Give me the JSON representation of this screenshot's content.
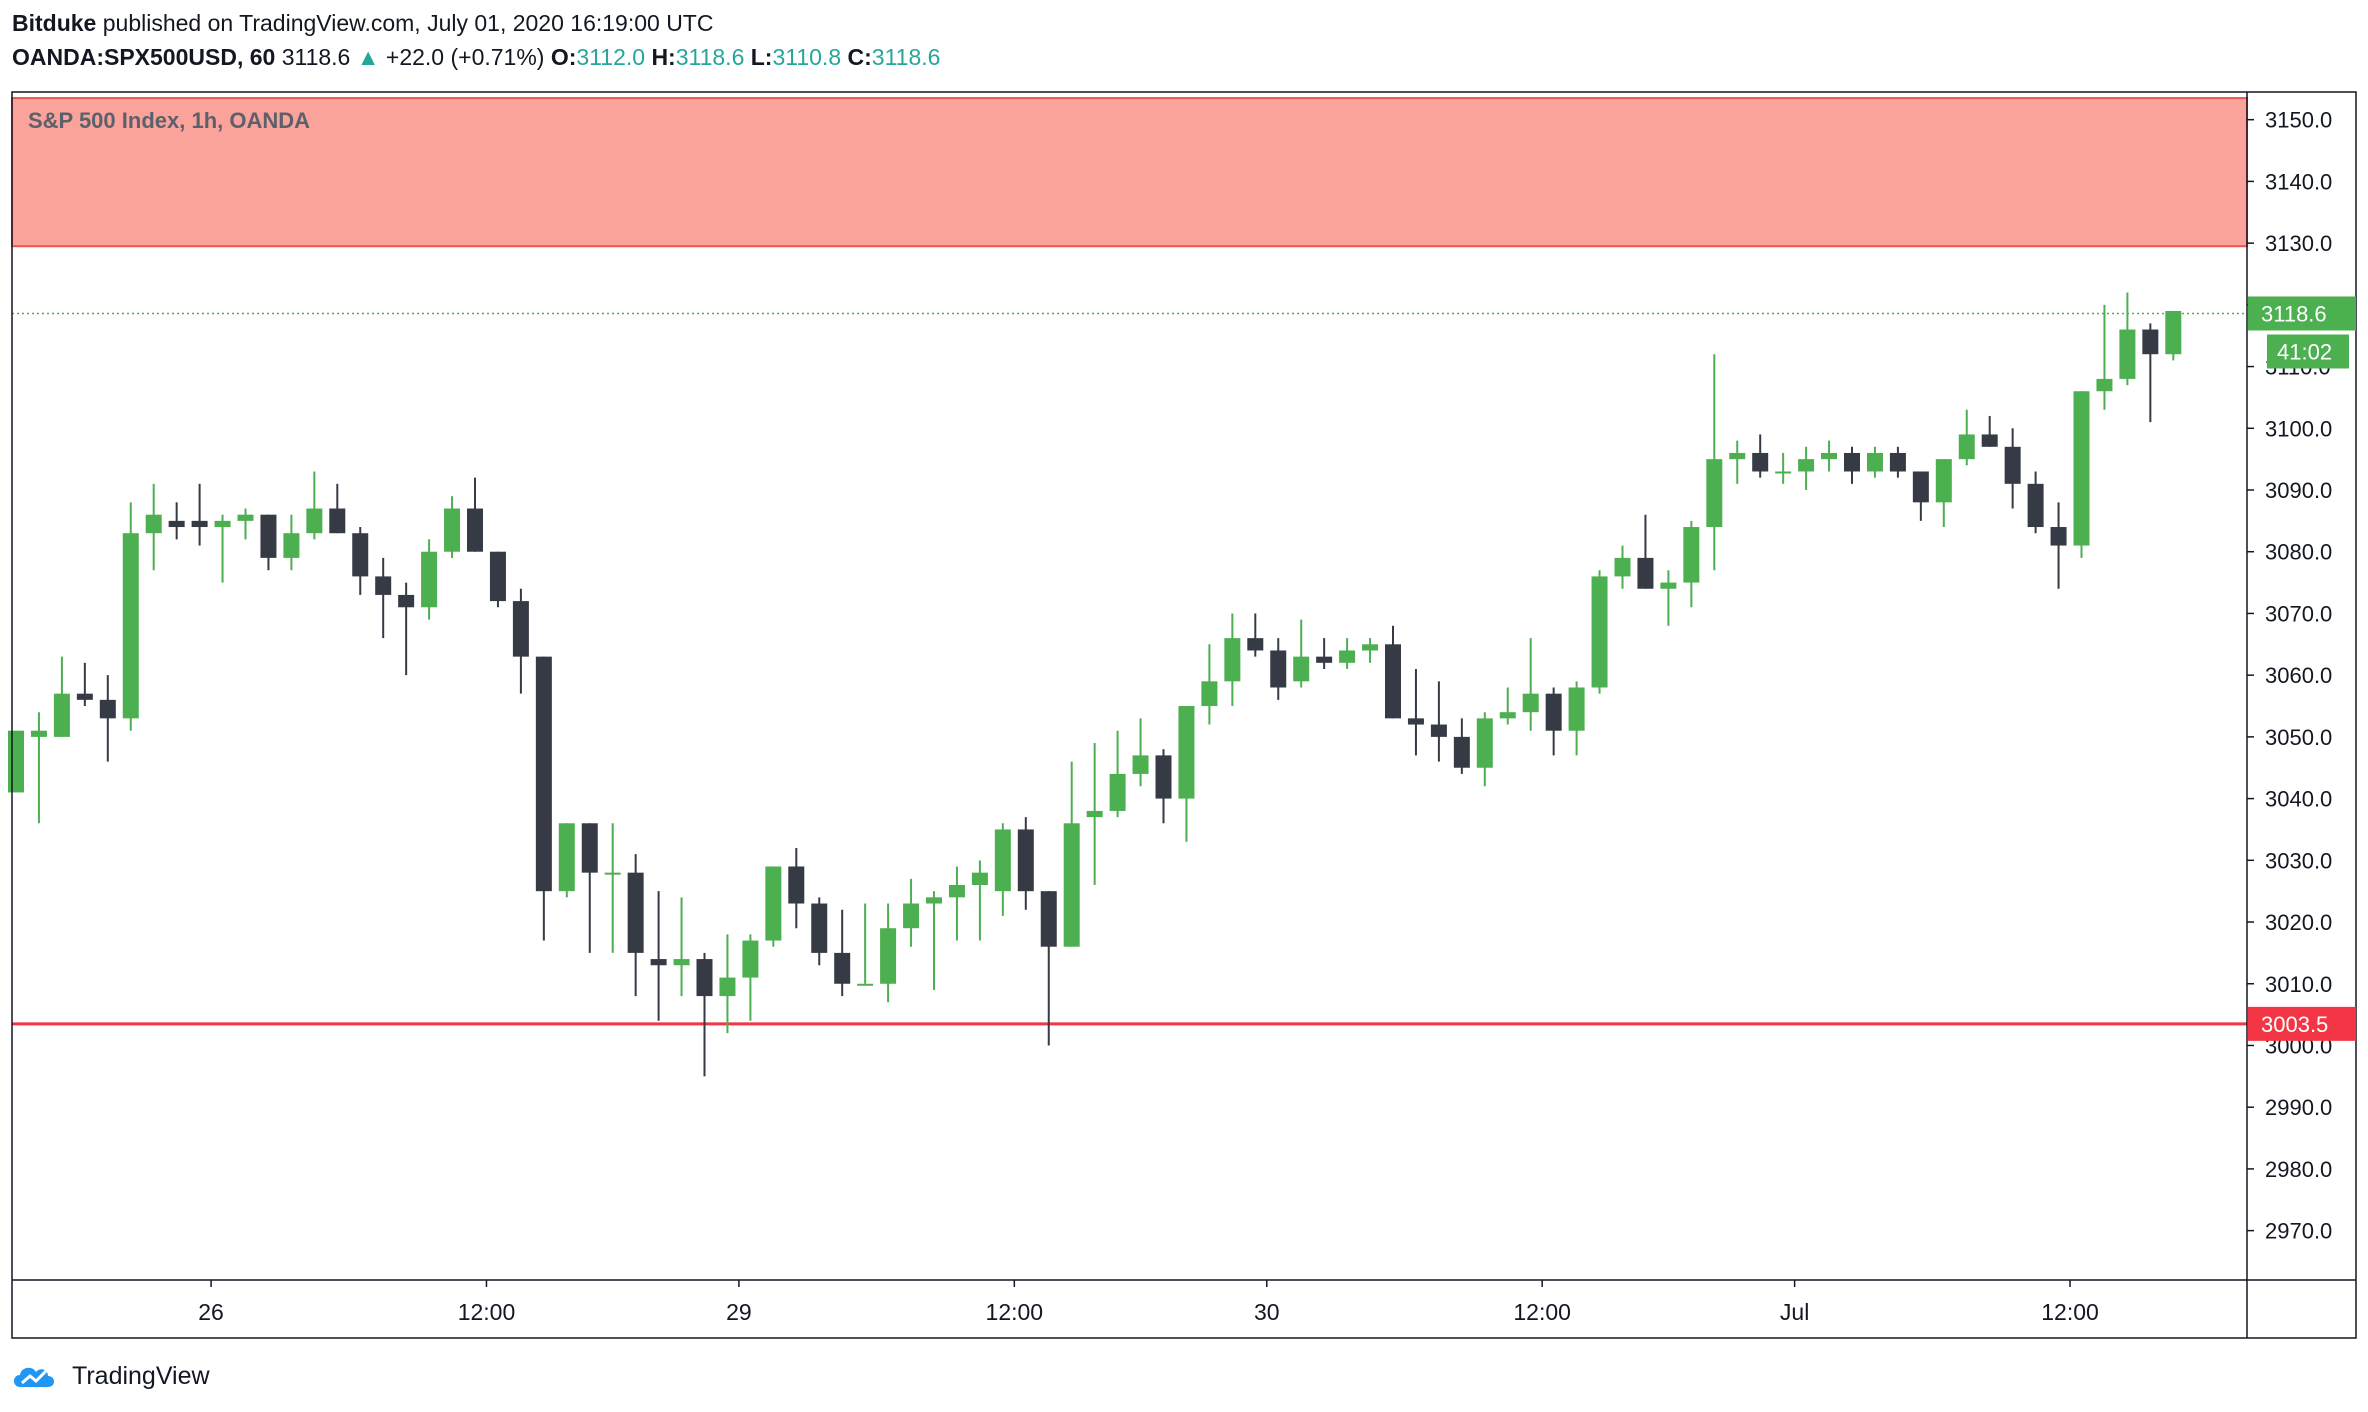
{
  "header": {
    "author": "Bitduke",
    "published_text": "published on TradingView.com, July 01, 2020 16:19:00 UTC",
    "symbol": "OANDA:SPX500USD, 60",
    "last": "3118.6",
    "arrow": "▲",
    "change": "+22.0 (+0.71%)",
    "o_label": "O:",
    "o_value": "3112.0",
    "h_label": "H:",
    "h_value": "3118.6",
    "l_label": "L:",
    "l_value": "3110.8",
    "c_label": "C:",
    "c_value": "3118.6"
  },
  "footer": {
    "brand": "TradingView",
    "logo_icon": "tradingview-logo-icon"
  },
  "colors": {
    "up": "#4caf50",
    "down": "#363a45",
    "zone_fill": "#f9a39b",
    "zone_border": "#ef5350",
    "support_line": "#f23645",
    "axis": "#131722",
    "grid_text": "#131722",
    "price_line": "#4caf50"
  },
  "chart_data": {
    "type": "candlestick",
    "title": "S&P 500 Index, 1h, OANDA",
    "ylim": [
      2962,
      3154
    ],
    "y_ticks": [
      2970,
      2980,
      2990,
      3000,
      3010,
      3020,
      3030,
      3040,
      3050,
      3060,
      3070,
      3080,
      3090,
      3100,
      3110,
      3120,
      3130,
      3140,
      3150
    ],
    "x_ticks": [
      {
        "index": 8.5,
        "label": "26"
      },
      {
        "index": 20.5,
        "label": "12:00"
      },
      {
        "index": 31.5,
        "label": "29"
      },
      {
        "index": 43.5,
        "label": "12:00"
      },
      {
        "index": 54.5,
        "label": "30"
      },
      {
        "index": 66.5,
        "label": "12:00"
      },
      {
        "index": 77.5,
        "label": "Jul"
      },
      {
        "index": 89.5,
        "label": "12:00"
      }
    ],
    "resistance_zone": [
      3129.5,
      3153.5
    ],
    "support_level": 3003.5,
    "last_price": 3118.6,
    "countdown": "41:02",
    "candles": [
      {
        "o": 3041,
        "h": 3051,
        "l": 3041,
        "c": 3051
      },
      {
        "o": 3050,
        "h": 3054,
        "l": 3036,
        "c": 3051
      },
      {
        "o": 3050,
        "h": 3063,
        "l": 3050,
        "c": 3057
      },
      {
        "o": 3057,
        "h": 3062,
        "l": 3055,
        "c": 3056
      },
      {
        "o": 3056,
        "h": 3060,
        "l": 3046,
        "c": 3053
      },
      {
        "o": 3053,
        "h": 3088,
        "l": 3051,
        "c": 3083
      },
      {
        "o": 3083,
        "h": 3091,
        "l": 3077,
        "c": 3086
      },
      {
        "o": 3085,
        "h": 3088,
        "l": 3082,
        "c": 3084
      },
      {
        "o": 3085,
        "h": 3091,
        "l": 3081,
        "c": 3084
      },
      {
        "o": 3084,
        "h": 3086,
        "l": 3075,
        "c": 3085
      },
      {
        "o": 3085,
        "h": 3087,
        "l": 3082,
        "c": 3086
      },
      {
        "o": 3086,
        "h": 3086,
        "l": 3077,
        "c": 3079
      },
      {
        "o": 3079,
        "h": 3086,
        "l": 3077,
        "c": 3083
      },
      {
        "o": 3083,
        "h": 3093,
        "l": 3082,
        "c": 3087
      },
      {
        "o": 3087,
        "h": 3091,
        "l": 3083,
        "c": 3083
      },
      {
        "o": 3083,
        "h": 3084,
        "l": 3073,
        "c": 3076
      },
      {
        "o": 3076,
        "h": 3079,
        "l": 3066,
        "c": 3073
      },
      {
        "o": 3073,
        "h": 3075,
        "l": 3060,
        "c": 3071
      },
      {
        "o": 3071,
        "h": 3082,
        "l": 3069,
        "c": 3080
      },
      {
        "o": 3080,
        "h": 3089,
        "l": 3079,
        "c": 3087
      },
      {
        "o": 3087,
        "h": 3092,
        "l": 3080,
        "c": 3080
      },
      {
        "o": 3080,
        "h": 3080,
        "l": 3071,
        "c": 3072
      },
      {
        "o": 3072,
        "h": 3074,
        "l": 3057,
        "c": 3063
      },
      {
        "o": 3063,
        "h": 3063,
        "l": 3017,
        "c": 3025
      },
      {
        "o": 3025,
        "h": 3036,
        "l": 3024,
        "c": 3036
      },
      {
        "o": 3036,
        "h": 3036,
        "l": 3015,
        "c": 3028
      },
      {
        "o": 3028,
        "h": 3036,
        "l": 3015,
        "c": 3028
      },
      {
        "o": 3028,
        "h": 3031,
        "l": 3008,
        "c": 3015
      },
      {
        "o": 3014,
        "h": 3025,
        "l": 3004,
        "c": 3013
      },
      {
        "o": 3013,
        "h": 3024,
        "l": 3008,
        "c": 3014
      },
      {
        "o": 3014,
        "h": 3015,
        "l": 2995,
        "c": 3008
      },
      {
        "o": 3008,
        "h": 3018,
        "l": 3002,
        "c": 3011
      },
      {
        "o": 3011,
        "h": 3018,
        "l": 3004,
        "c": 3017
      },
      {
        "o": 3017,
        "h": 3029,
        "l": 3016,
        "c": 3029
      },
      {
        "o": 3029,
        "h": 3032,
        "l": 3019,
        "c": 3023
      },
      {
        "o": 3023,
        "h": 3024,
        "l": 3013,
        "c": 3015
      },
      {
        "o": 3015,
        "h": 3022,
        "l": 3008,
        "c": 3010
      },
      {
        "o": 3010,
        "h": 3023,
        "l": 3010,
        "c": 3010
      },
      {
        "o": 3010,
        "h": 3023,
        "l": 3007,
        "c": 3019
      },
      {
        "o": 3019,
        "h": 3027,
        "l": 3016,
        "c": 3023
      },
      {
        "o": 3023,
        "h": 3025,
        "l": 3009,
        "c": 3024
      },
      {
        "o": 3024,
        "h": 3029,
        "l": 3017,
        "c": 3026
      },
      {
        "o": 3026,
        "h": 3030,
        "l": 3017,
        "c": 3028
      },
      {
        "o": 3025,
        "h": 3036,
        "l": 3021,
        "c": 3035
      },
      {
        "o": 3035,
        "h": 3037,
        "l": 3022,
        "c": 3025
      },
      {
        "o": 3025,
        "h": 3025,
        "l": 3000,
        "c": 3016
      },
      {
        "o": 3016,
        "h": 3046,
        "l": 3016,
        "c": 3036
      },
      {
        "o": 3037,
        "h": 3049,
        "l": 3026,
        "c": 3038
      },
      {
        "o": 3038,
        "h": 3051,
        "l": 3037,
        "c": 3044
      },
      {
        "o": 3044,
        "h": 3053,
        "l": 3042,
        "c": 3047
      },
      {
        "o": 3047,
        "h": 3048,
        "l": 3036,
        "c": 3040
      },
      {
        "o": 3040,
        "h": 3055,
        "l": 3033,
        "c": 3055
      },
      {
        "o": 3055,
        "h": 3065,
        "l": 3052,
        "c": 3059
      },
      {
        "o": 3059,
        "h": 3070,
        "l": 3055,
        "c": 3066
      },
      {
        "o": 3066,
        "h": 3070,
        "l": 3063,
        "c": 3064
      },
      {
        "o": 3064,
        "h": 3066,
        "l": 3056,
        "c": 3058
      },
      {
        "o": 3059,
        "h": 3069,
        "l": 3058,
        "c": 3063
      },
      {
        "o": 3063,
        "h": 3066,
        "l": 3061,
        "c": 3062
      },
      {
        "o": 3062,
        "h": 3066,
        "l": 3061,
        "c": 3064
      },
      {
        "o": 3064,
        "h": 3066,
        "l": 3062,
        "c": 3065
      },
      {
        "o": 3065,
        "h": 3068,
        "l": 3053,
        "c": 3053
      },
      {
        "o": 3053,
        "h": 3061,
        "l": 3047,
        "c": 3052
      },
      {
        "o": 3052,
        "h": 3059,
        "l": 3046,
        "c": 3050
      },
      {
        "o": 3050,
        "h": 3053,
        "l": 3044,
        "c": 3045
      },
      {
        "o": 3045,
        "h": 3054,
        "l": 3042,
        "c": 3053
      },
      {
        "o": 3053,
        "h": 3058,
        "l": 3052,
        "c": 3054
      },
      {
        "o": 3054,
        "h": 3066,
        "l": 3051,
        "c": 3057
      },
      {
        "o": 3057,
        "h": 3058,
        "l": 3047,
        "c": 3051
      },
      {
        "o": 3051,
        "h": 3059,
        "l": 3047,
        "c": 3058
      },
      {
        "o": 3058,
        "h": 3077,
        "l": 3057,
        "c": 3076
      },
      {
        "o": 3076,
        "h": 3081,
        "l": 3074,
        "c": 3079
      },
      {
        "o": 3079,
        "h": 3086,
        "l": 3074,
        "c": 3074
      },
      {
        "o": 3074,
        "h": 3077,
        "l": 3068,
        "c": 3075
      },
      {
        "o": 3075,
        "h": 3085,
        "l": 3071,
        "c": 3084
      },
      {
        "o": 3084,
        "h": 3112,
        "l": 3077,
        "c": 3095
      },
      {
        "o": 3095,
        "h": 3098,
        "l": 3091,
        "c": 3096
      },
      {
        "o": 3096,
        "h": 3099,
        "l": 3092,
        "c": 3093
      },
      {
        "o": 3093,
        "h": 3096,
        "l": 3091,
        "c": 3093
      },
      {
        "o": 3093,
        "h": 3097,
        "l": 3090,
        "c": 3095
      },
      {
        "o": 3095,
        "h": 3098,
        "l": 3093,
        "c": 3096
      },
      {
        "o": 3096,
        "h": 3097,
        "l": 3091,
        "c": 3093
      },
      {
        "o": 3093,
        "h": 3097,
        "l": 3092,
        "c": 3096
      },
      {
        "o": 3096,
        "h": 3097,
        "l": 3092,
        "c": 3093
      },
      {
        "o": 3093,
        "h": 3093,
        "l": 3085,
        "c": 3088
      },
      {
        "o": 3088,
        "h": 3095,
        "l": 3084,
        "c": 3095
      },
      {
        "o": 3095,
        "h": 3103,
        "l": 3094,
        "c": 3099
      },
      {
        "o": 3099,
        "h": 3102,
        "l": 3097,
        "c": 3097
      },
      {
        "o": 3097,
        "h": 3100,
        "l": 3087,
        "c": 3091
      },
      {
        "o": 3091,
        "h": 3093,
        "l": 3083,
        "c": 3084
      },
      {
        "o": 3084,
        "h": 3088,
        "l": 3074,
        "c": 3081
      },
      {
        "o": 3081,
        "h": 3106,
        "l": 3079,
        "c": 3106
      },
      {
        "o": 3106,
        "h": 3120,
        "l": 3103,
        "c": 3108
      },
      {
        "o": 3108,
        "h": 3122,
        "l": 3107,
        "c": 3116
      },
      {
        "o": 3116,
        "h": 3117,
        "l": 3101,
        "c": 3112
      },
      {
        "o": 3112,
        "h": 3119,
        "l": 3111,
        "c": 3119
      }
    ]
  }
}
